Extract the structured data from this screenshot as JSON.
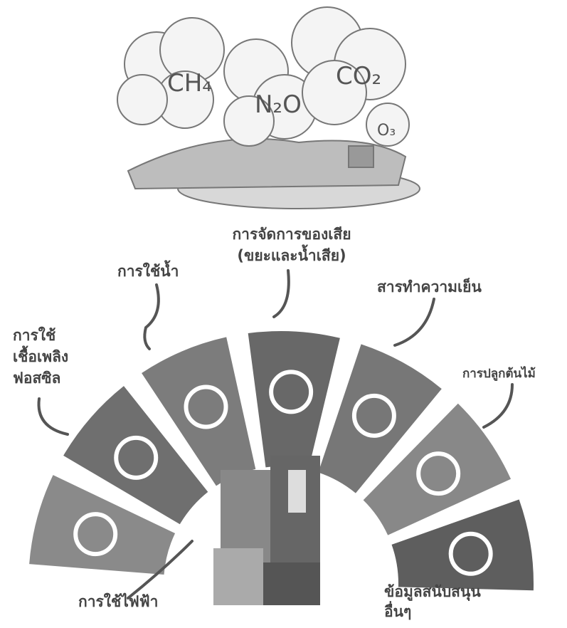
{
  "gases": [
    "CH₄",
    "N₂O",
    "CO₂",
    "O₃"
  ],
  "segments": [
    {
      "label_lines": [
        "การใช้ไฟฟ้า"
      ]
    },
    {
      "label_lines": [
        "การใช้",
        "เชื้อเพลิง",
        "ฟอสซิล"
      ]
    },
    {
      "label_lines": [
        "การใช้น้ำ"
      ]
    },
    {
      "label_lines": [
        "การจัดการของเสีย",
        "(ขยะและน้ำเสีย)"
      ]
    },
    {
      "label_lines": [
        "สารทำความเย็น"
      ]
    },
    {
      "label_lines": [
        "การปลูกต้นไม้"
      ]
    },
    {
      "label_lines": [
        "ข้อมูลสนับสนุน",
        "อื่นๆ"
      ]
    }
  ]
}
